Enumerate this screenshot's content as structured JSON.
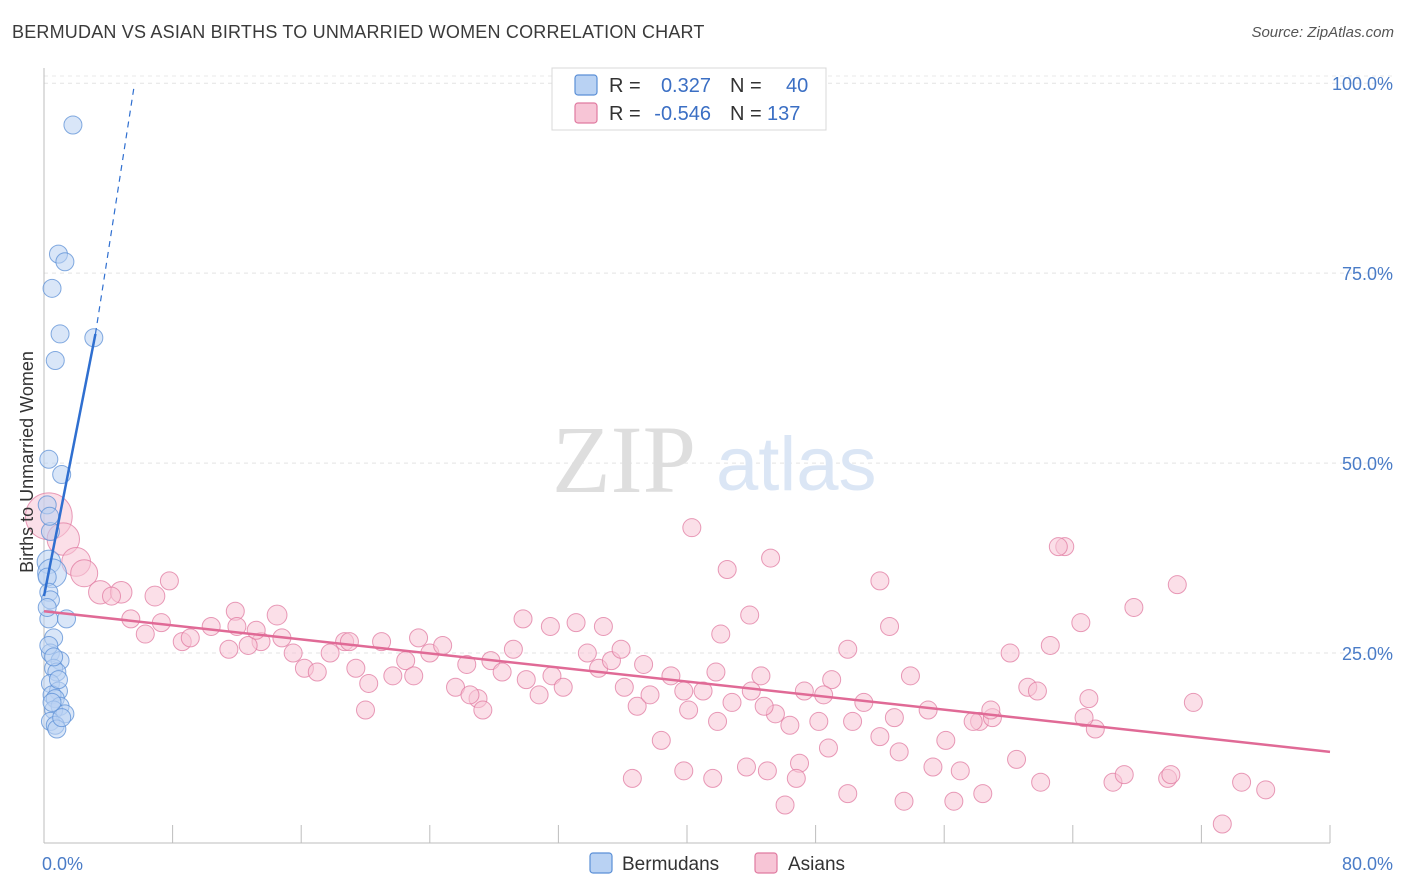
{
  "title": "BERMUDAN VS ASIAN BIRTHS TO UNMARRIED WOMEN CORRELATION CHART",
  "source": "Source: ZipAtlas.com",
  "watermark": {
    "zip": "ZIP",
    "atlas": "atlas"
  },
  "stats_legend": [
    {
      "r_label": "R =",
      "r_value": "0.327",
      "n_label": "N =",
      "n_value": "40",
      "color": "#5b8fd6",
      "fill": "#b9d2f3"
    },
    {
      "r_label": "R =",
      "r_value": "-0.546",
      "n_label": "N =",
      "n_value": "137",
      "color": "#e07aa0",
      "fill": "#f7c5d6"
    }
  ],
  "chart_data": {
    "type": "scatter",
    "title": "BERMUDAN VS ASIAN BIRTHS TO UNMARRIED WOMEN CORRELATION CHART",
    "xlabel": "",
    "ylabel": "Births to Unmarried Women",
    "xlim": [
      0,
      80
    ],
    "ylim": [
      0,
      102
    ],
    "x_tick_labels": [
      "0.0%",
      "80.0%"
    ],
    "y_ticks": [
      25,
      50,
      75,
      100
    ],
    "y_tick_labels": [
      "25.0%",
      "50.0%",
      "75.0%",
      "100.0%"
    ],
    "grid": true,
    "legend_position": "bottom-center",
    "series": [
      {
        "name": "Bermudans",
        "color": "#5b8fd6",
        "fill": "#b9d2f3",
        "trend": {
          "x0": 0.0,
          "y0": 32.5,
          "x1": 3.2,
          "y1": 67.0,
          "dashed_to_x": 5.6,
          "dashed_to_y": 99.5
        },
        "points": [
          [
            1.8,
            94.5,
            1
          ],
          [
            0.9,
            77.5,
            1
          ],
          [
            1.3,
            76.5,
            1
          ],
          [
            0.5,
            73,
            1
          ],
          [
            1.0,
            67,
            1
          ],
          [
            3.1,
            66.5,
            1
          ],
          [
            0.7,
            63.5,
            1
          ],
          [
            0.3,
            50.5,
            1
          ],
          [
            1.1,
            48.5,
            1
          ],
          [
            0.2,
            44.5,
            1
          ],
          [
            0.4,
            41,
            1
          ],
          [
            0.3,
            37,
            1.3
          ],
          [
            0.5,
            35.5,
            1.6
          ],
          [
            0.2,
            35,
            1
          ],
          [
            0.3,
            33,
            1
          ],
          [
            0.4,
            32,
            1
          ],
          [
            0.3,
            29.5,
            1
          ],
          [
            1.4,
            29.5,
            1
          ],
          [
            0.6,
            27,
            1
          ],
          [
            0.4,
            25,
            1
          ],
          [
            1.0,
            24,
            1
          ],
          [
            0.6,
            23,
            1
          ],
          [
            0.8,
            22.5,
            1
          ],
          [
            0.4,
            21,
            1
          ],
          [
            0.9,
            20,
            1
          ],
          [
            0.5,
            19.5,
            1
          ],
          [
            0.7,
            19,
            1
          ],
          [
            1.0,
            18,
            1
          ],
          [
            0.6,
            17.5,
            1
          ],
          [
            1.3,
            17,
            1
          ],
          [
            0.4,
            16,
            1
          ],
          [
            0.7,
            15.5,
            1
          ],
          [
            0.8,
            15,
            1
          ],
          [
            0.5,
            18.5,
            1
          ],
          [
            0.3,
            26,
            1
          ],
          [
            0.9,
            21.5,
            1
          ],
          [
            0.2,
            31,
            1
          ],
          [
            0.6,
            24.5,
            1
          ],
          [
            1.1,
            16.5,
            1
          ],
          [
            0.35,
            43,
            1
          ]
        ]
      },
      {
        "name": "Asians",
        "color": "#e07aa0",
        "fill": "#f7c5d6",
        "trend": {
          "x0": 0.0,
          "y0": 30.5,
          "x1": 80.0,
          "y1": 12.0
        },
        "points": [
          [
            0.3,
            43,
            2.6
          ],
          [
            1.2,
            40,
            1.8
          ],
          [
            2.0,
            37,
            1.6
          ],
          [
            2.5,
            35.5,
            1.5
          ],
          [
            3.5,
            33,
            1.3
          ],
          [
            4.8,
            33,
            1.2
          ],
          [
            6.9,
            32.5,
            1.1
          ],
          [
            4.2,
            32.5,
            1.0
          ],
          [
            7.8,
            34.5,
            1.0
          ],
          [
            11.9,
            30.5,
            1.0
          ],
          [
            14.5,
            30,
            1.1
          ],
          [
            8.6,
            26.5,
            1.0
          ],
          [
            10.4,
            28.5,
            1.0
          ],
          [
            12.0,
            28.5,
            1.0
          ],
          [
            13.5,
            26.5,
            1.0
          ],
          [
            5.4,
            29.5,
            1.0
          ],
          [
            6.3,
            27.5,
            1.0
          ],
          [
            7.3,
            29,
            1.0
          ],
          [
            9.1,
            27,
            1.0
          ],
          [
            11.5,
            25.5,
            1.0
          ],
          [
            12.7,
            26,
            1.0
          ],
          [
            13.2,
            28,
            1.0
          ],
          [
            14.8,
            27,
            1.0
          ],
          [
            15.5,
            25,
            1.0
          ],
          [
            16.2,
            23,
            1.0
          ],
          [
            17.0,
            22.5,
            1.0
          ],
          [
            17.8,
            25,
            1.0
          ],
          [
            18.7,
            26.5,
            1.0
          ],
          [
            19.4,
            23,
            1.0
          ],
          [
            20.2,
            21,
            1.0
          ],
          [
            21.0,
            26.5,
            1.0
          ],
          [
            21.7,
            22,
            1.0
          ],
          [
            22.5,
            24,
            1.0
          ],
          [
            23.3,
            27,
            1.0
          ],
          [
            24.0,
            25,
            1.0
          ],
          [
            24.8,
            26,
            1.0
          ],
          [
            25.6,
            20.5,
            1.0
          ],
          [
            26.3,
            23.5,
            1.0
          ],
          [
            27.0,
            19,
            1.0
          ],
          [
            27.8,
            24,
            1.0
          ],
          [
            28.5,
            22.5,
            1.0
          ],
          [
            29.2,
            25.5,
            1.0
          ],
          [
            30.0,
            21.5,
            1.0
          ],
          [
            30.8,
            19.5,
            1.0
          ],
          [
            31.6,
            22,
            1.0
          ],
          [
            32.3,
            20.5,
            1.0
          ],
          [
            33.1,
            29,
            1.0
          ],
          [
            33.8,
            25,
            1.0
          ],
          [
            34.5,
            23,
            1.0
          ],
          [
            35.3,
            24,
            1.0
          ],
          [
            36.1,
            20.5,
            1.0
          ],
          [
            36.9,
            18,
            1.0
          ],
          [
            37.7,
            19.5,
            1.0
          ],
          [
            38.4,
            13.5,
            1.0
          ],
          [
            39.0,
            22,
            1.0
          ],
          [
            40.1,
            17.5,
            1.0
          ],
          [
            41.0,
            20,
            1.0
          ],
          [
            41.9,
            16,
            1.0
          ],
          [
            42.8,
            18.5,
            1.0
          ],
          [
            43.7,
            10,
            1.0
          ],
          [
            44.6,
            22,
            1.0
          ],
          [
            45.5,
            17,
            1.0
          ],
          [
            46.4,
            15.5,
            1.0
          ],
          [
            47.3,
            20,
            1.0
          ],
          [
            48.2,
            16,
            1.0
          ],
          [
            49.0,
            21.5,
            1.0
          ],
          [
            50.0,
            25.5,
            1.0
          ],
          [
            51.0,
            18.5,
            1.0
          ],
          [
            52.0,
            14,
            1.0
          ],
          [
            52.9,
            16.5,
            1.0
          ],
          [
            53.9,
            22,
            1.0
          ],
          [
            55.0,
            17.5,
            1.0
          ],
          [
            56.1,
            13.5,
            1.0
          ],
          [
            57.0,
            9.5,
            1.0
          ],
          [
            58.2,
            16,
            1.0
          ],
          [
            59.0,
            16.5,
            1.0
          ],
          [
            60.1,
            25,
            1.0
          ],
          [
            61.2,
            20.5,
            1.0
          ],
          [
            62.0,
            8,
            1.0
          ],
          [
            63.5,
            39,
            1.0
          ],
          [
            64.5,
            29,
            1.0
          ],
          [
            65.0,
            19,
            1.0
          ],
          [
            66.5,
            8,
            1.0
          ],
          [
            67.8,
            31,
            1.0
          ],
          [
            70.5,
            34,
            1.0
          ],
          [
            71.5,
            18.5,
            1.0
          ],
          [
            74.5,
            8,
            1.0
          ],
          [
            76.0,
            7,
            1.0
          ],
          [
            40.3,
            41.5,
            1.0
          ],
          [
            42.5,
            36,
            1.0
          ],
          [
            45.2,
            37.5,
            1.0
          ],
          [
            43.9,
            30,
            1.0
          ],
          [
            52.0,
            34.5,
            1.0
          ],
          [
            52.6,
            28.5,
            1.0
          ],
          [
            20.0,
            17.5,
            1.0
          ],
          [
            23.0,
            22,
            1.0
          ],
          [
            27.3,
            17.5,
            1.0
          ],
          [
            29.8,
            29.5,
            1.0
          ],
          [
            31.5,
            28.5,
            1.0
          ],
          [
            34.8,
            28.5,
            1.0
          ],
          [
            35.9,
            25.5,
            1.0
          ],
          [
            37.3,
            23.5,
            1.0
          ],
          [
            39.8,
            20,
            1.0
          ],
          [
            41.8,
            22.5,
            1.0
          ],
          [
            42.1,
            27.5,
            1.0
          ],
          [
            44.0,
            20,
            1.0
          ],
          [
            45.0,
            9.5,
            1.0
          ],
          [
            46.1,
            5,
            1.0
          ],
          [
            47.0,
            10.5,
            1.0
          ],
          [
            48.8,
            12.5,
            1.0
          ],
          [
            50.3,
            16,
            1.0
          ],
          [
            53.5,
            5.5,
            1.0
          ],
          [
            55.3,
            10,
            1.0
          ],
          [
            56.6,
            5.5,
            1.0
          ],
          [
            57.8,
            16,
            1.0
          ],
          [
            58.9,
            17.5,
            1.0
          ],
          [
            60.5,
            11,
            1.0
          ],
          [
            62.6,
            26,
            1.0
          ],
          [
            63.1,
            39,
            1.0
          ],
          [
            65.4,
            15,
            1.0
          ],
          [
            69.9,
            8.5,
            1.0
          ],
          [
            73.3,
            2.5,
            1.0
          ],
          [
            36.6,
            8.5,
            1.0
          ],
          [
            39.8,
            9.5,
            1.0
          ],
          [
            41.6,
            8.5,
            1.0
          ],
          [
            46.8,
            8.5,
            1.0
          ],
          [
            50.0,
            6.5,
            1.0
          ],
          [
            19.0,
            26.5,
            1.0
          ],
          [
            26.5,
            19.5,
            1.0
          ],
          [
            44.8,
            18,
            1.0
          ],
          [
            48.5,
            19.5,
            1.0
          ],
          [
            53.2,
            12,
            1.0
          ],
          [
            58.4,
            6.5,
            1.0
          ],
          [
            61.8,
            20,
            1.0
          ],
          [
            64.7,
            16.5,
            1.0
          ],
          [
            67.2,
            9,
            1.0
          ],
          [
            70.1,
            9,
            1.0
          ]
        ]
      }
    ]
  },
  "bottom_legend": [
    {
      "label": "Bermudans",
      "color": "#5b8fd6",
      "fill": "#b9d2f3"
    },
    {
      "label": "Asians",
      "color": "#e07aa0",
      "fill": "#f7c5d6"
    }
  ]
}
